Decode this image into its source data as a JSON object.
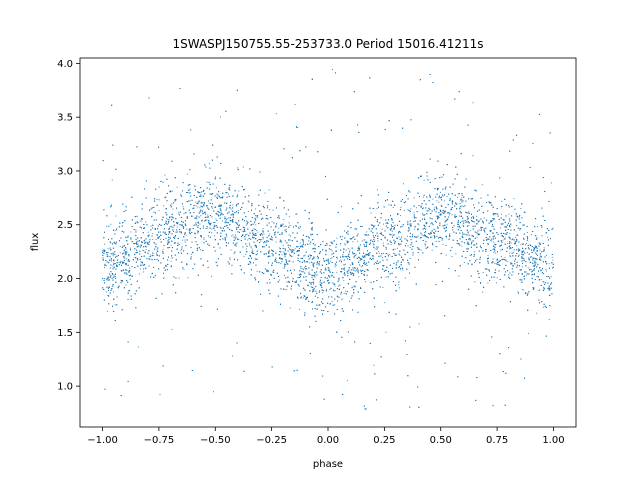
{
  "chart_data": {
    "type": "scatter",
    "title": "1SWASPJ150755.55-253733.0 Period 15016.41211s",
    "xlabel": "phase",
    "ylabel": "flux",
    "xlim": [
      -1.1,
      1.1
    ],
    "ylim": [
      0.62,
      4.05
    ],
    "xticks": [
      -1.0,
      -0.75,
      -0.5,
      -0.25,
      0.0,
      0.25,
      0.5,
      0.75,
      1.0
    ],
    "xtick_labels": [
      "−1.00",
      "−0.75",
      "−0.50",
      "−0.25",
      "0.00",
      "0.25",
      "0.50",
      "0.75",
      "1.00"
    ],
    "yticks": [
      1.0,
      1.5,
      2.0,
      2.5,
      3.0,
      3.5,
      4.0
    ],
    "ytick_labels": [
      "1.0",
      "1.5",
      "2.0",
      "2.5",
      "3.0",
      "3.5",
      "4.0"
    ],
    "marker_color": "#1f77b4",
    "grid": false,
    "legend": "none",
    "model": {
      "description_points_phase": [
        -1.0,
        -0.75,
        -0.5,
        -0.25,
        0.0,
        0.25,
        0.5,
        0.75,
        1.0
      ],
      "description_points_flux": [
        2.08,
        2.4,
        2.58,
        2.3,
        2.05,
        2.32,
        2.57,
        2.35,
        2.08
      ],
      "scatter_sigma": 0.2,
      "n_points": 9000,
      "outlier_fraction": 0.05,
      "outlier_range": [
        0.75,
        3.95
      ]
    }
  }
}
